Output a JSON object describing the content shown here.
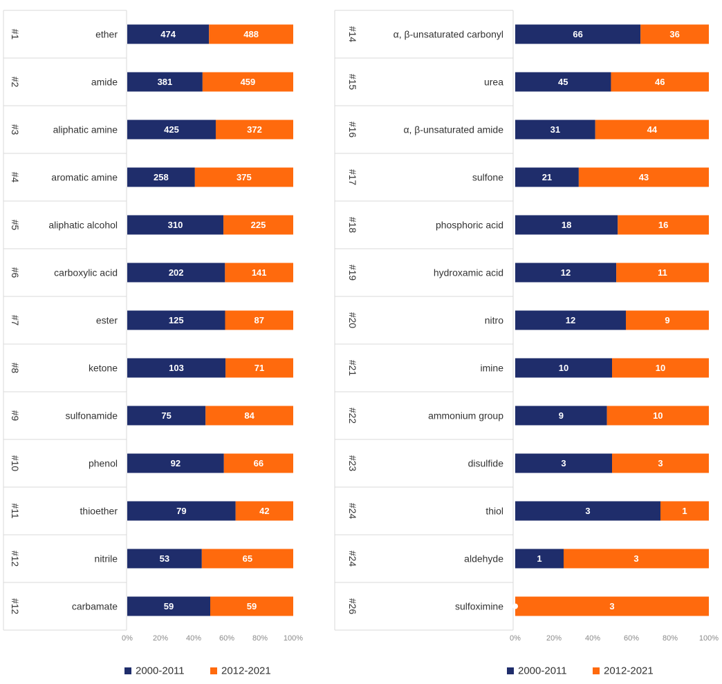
{
  "chart_data": [
    {
      "type": "bar",
      "orientation": "horizontal",
      "stacked": "percent",
      "ranks": [
        "#1",
        "#2",
        "#3",
        "#4",
        "#5",
        "#6",
        "#7",
        "#8",
        "#9",
        "#10",
        "#11",
        "#12",
        "#12"
      ],
      "categories": [
        "ether",
        "amide",
        "aliphatic amine",
        "aromatic amine",
        "aliphatic alcohol",
        "carboxylic acid",
        "ester",
        "ketone",
        "sulfonamide",
        "phenol",
        "thioether",
        "nitrile",
        "carbamate"
      ],
      "series": [
        {
          "name": "2000-2011",
          "color": "#1f2d6b",
          "values": [
            474,
            381,
            425,
            258,
            310,
            202,
            125,
            103,
            75,
            92,
            79,
            53,
            59
          ]
        },
        {
          "name": "2012-2021",
          "color": "#ff6a0d",
          "values": [
            488,
            459,
            372,
            375,
            225,
            141,
            87,
            71,
            84,
            66,
            42,
            65,
            59
          ]
        }
      ],
      "xticks": [
        "0%",
        "20%",
        "40%",
        "60%",
        "80%",
        "100%"
      ],
      "xlim": [
        0,
        100
      ],
      "legend": "bottom"
    },
    {
      "type": "bar",
      "orientation": "horizontal",
      "stacked": "percent",
      "ranks": [
        "#14",
        "#15",
        "#16",
        "#17",
        "#18",
        "#19",
        "#20",
        "#21",
        "#22",
        "#23",
        "#24",
        "#24",
        "#26"
      ],
      "categories": [
        "α, β-unsaturated carbonyl",
        "urea",
        "α, β-unsaturated amide",
        "sulfone",
        "phosphoric acid",
        "hydroxamic acid",
        "nitro",
        "imine",
        "ammonium group",
        "disulfide",
        "thiol",
        "aldehyde",
        "sulfoximine"
      ],
      "series": [
        {
          "name": "2000-2011",
          "color": "#1f2d6b",
          "values": [
            66,
            45,
            31,
            21,
            18,
            12,
            12,
            10,
            9,
            3,
            3,
            1,
            0
          ]
        },
        {
          "name": "2012-2021",
          "color": "#ff6a0d",
          "values": [
            36,
            46,
            44,
            43,
            16,
            11,
            9,
            10,
            10,
            3,
            1,
            3,
            3
          ]
        }
      ],
      "xticks": [
        "0%",
        "20%",
        "40%",
        "60%",
        "80%",
        "100%"
      ],
      "xlim": [
        0,
        100
      ],
      "legend": "bottom"
    }
  ]
}
